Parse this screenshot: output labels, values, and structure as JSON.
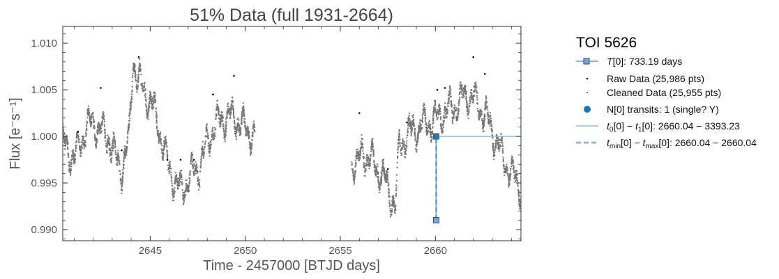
{
  "chart_data": {
    "type": "scatter",
    "title": "51% Data (full 1931-2664)",
    "xlabel": "Time - 2457000 [BTJD days]",
    "ylabel": "Flux [e⁻s⁻¹]",
    "xlim": [
      2640.4,
      2664.5
    ],
    "ylim": [
      0.9888,
      1.0118
    ],
    "xticks": [
      2645,
      2650,
      2655,
      2660
    ],
    "yticks": [
      0.99,
      0.995,
      1.0,
      1.005,
      1.01
    ],
    "xtick_labels": [
      "2645",
      "2650",
      "2655",
      "2660"
    ],
    "ytick_labels": [
      "0.990",
      "0.995",
      "1.000",
      "1.005",
      "1.010"
    ],
    "legend_placement": "outside right",
    "legend": {
      "title": "TOI 5626",
      "entries": [
        {
          "key": "period",
          "prefix": "T[0]",
          "text": ": 733.19 days"
        },
        {
          "key": "raw",
          "text": "Raw Data (25,986 pts)"
        },
        {
          "key": "clean",
          "text": "Cleaned Data (25,955 pts)"
        },
        {
          "key": "ntransits",
          "text": "N[0] transits: 1 (single? Y)"
        },
        {
          "key": "t0t1",
          "prefix": "t₀[0] − t₁[0]",
          "text": ": 2660.04 − 3393.23"
        },
        {
          "key": "tminmax",
          "prefix": "t_min[0] − t_max[0]",
          "text": ": 2660.04 − 2660.04"
        }
      ]
    },
    "cleaned_data_trend": {
      "segments": [
        {
          "x": [
            2640.4,
            2640.7,
            2641.0,
            2641.3,
            2641.6,
            2642.0,
            2642.4,
            2642.8,
            2643.0,
            2643.3,
            2643.5,
            2643.7,
            2643.9,
            2644.1,
            2644.3,
            2644.6,
            2644.9,
            2645.2,
            2645.5,
            2645.8,
            2646.0,
            2646.3,
            2646.6,
            2646.9,
            2647.2,
            2647.5,
            2647.8,
            2648.1,
            2648.4,
            2648.8,
            2649.2,
            2649.6,
            2649.9,
            2650.2,
            2650.5
          ],
          "y": [
            0.9995,
            0.9985,
            0.9975,
            0.9992,
            1.0008,
            1.0015,
            1.0005,
            1.0,
            0.9988,
            0.997,
            0.9965,
            0.998,
            0.9998,
            1.0085,
            1.0065,
            1.005,
            1.004,
            1.0028,
            1.0005,
            0.998,
            0.9965,
            0.9952,
            0.9942,
            0.995,
            0.996,
            0.9965,
            0.998,
            1.0,
            1.0012,
            1.002,
            1.0022,
            1.0018,
            1.001,
            1.0005,
            1.0
          ]
        },
        {
          "x": [
            2655.6,
            2655.9,
            2656.2,
            2656.5,
            2656.8,
            2657.1,
            2657.4,
            2657.7,
            2657.9,
            2658.1,
            2658.4,
            2658.7,
            2659.0,
            2659.3,
            2659.6,
            2660.0,
            2660.4,
            2660.8,
            2661.2,
            2661.6,
            2662.0,
            2662.4,
            2662.8,
            2663.2,
            2663.6,
            2664.0,
            2664.5
          ],
          "y": [
            0.9975,
            0.9968,
            0.9985,
            0.9975,
            0.997,
            0.996,
            0.995,
            0.9935,
            0.9925,
            0.999,
            0.9998,
            1.0005,
            1.0008,
            1.0012,
            1.0015,
            1.0018,
            1.0025,
            1.003,
            1.0035,
            1.0045,
            1.004,
            1.003,
            1.0015,
            0.9995,
            0.9975,
            0.996,
            0.9945
          ]
        }
      ]
    },
    "raw_outliers": [
      {
        "x": 2641.2,
        "y": 1.0005
      },
      {
        "x": 2642.4,
        "y": 1.0052
      },
      {
        "x": 2643.5,
        "y": 0.9985
      },
      {
        "x": 2644.4,
        "y": 1.0085
      },
      {
        "x": 2645.9,
        "y": 0.9975
      },
      {
        "x": 2646.6,
        "y": 0.9975
      },
      {
        "x": 2647.3,
        "y": 0.9975
      },
      {
        "x": 2648.3,
        "y": 1.0045
      },
      {
        "x": 2649.4,
        "y": 1.0065
      },
      {
        "x": 2656.0,
        "y": 1.0025
      },
      {
        "x": 2657.5,
        "y": 0.9965
      },
      {
        "x": 2658.5,
        "y": 1.0015
      },
      {
        "x": 2660.1,
        "y": 1.005
      },
      {
        "x": 2660.5,
        "y": 1.0052
      },
      {
        "x": 2662.0,
        "y": 1.0085
      },
      {
        "x": 2662.6,
        "y": 1.0067
      }
    ],
    "period_marker": {
      "x": [
        2660.04,
        2660.04
      ],
      "y": [
        1.0,
        0.991
      ]
    },
    "transit_point": {
      "x": 2660.04,
      "y": 1.0
    },
    "t0t1_line": {
      "x": [
        2660.04,
        2664.5
      ],
      "y": [
        1.0,
        1.0
      ]
    },
    "tminmax_line": {
      "x": [
        2660.04,
        2660.04
      ],
      "y": [
        0.9998,
        0.991
      ]
    }
  },
  "colors": {
    "cleaned": "#777777",
    "raw": "#000000",
    "period": "#6a9bc3",
    "period_fill": "#7aa6cf",
    "transit": "#1f77b4",
    "t0t1": "#8fbbd9",
    "tminmax": "#8fbbd9"
  }
}
